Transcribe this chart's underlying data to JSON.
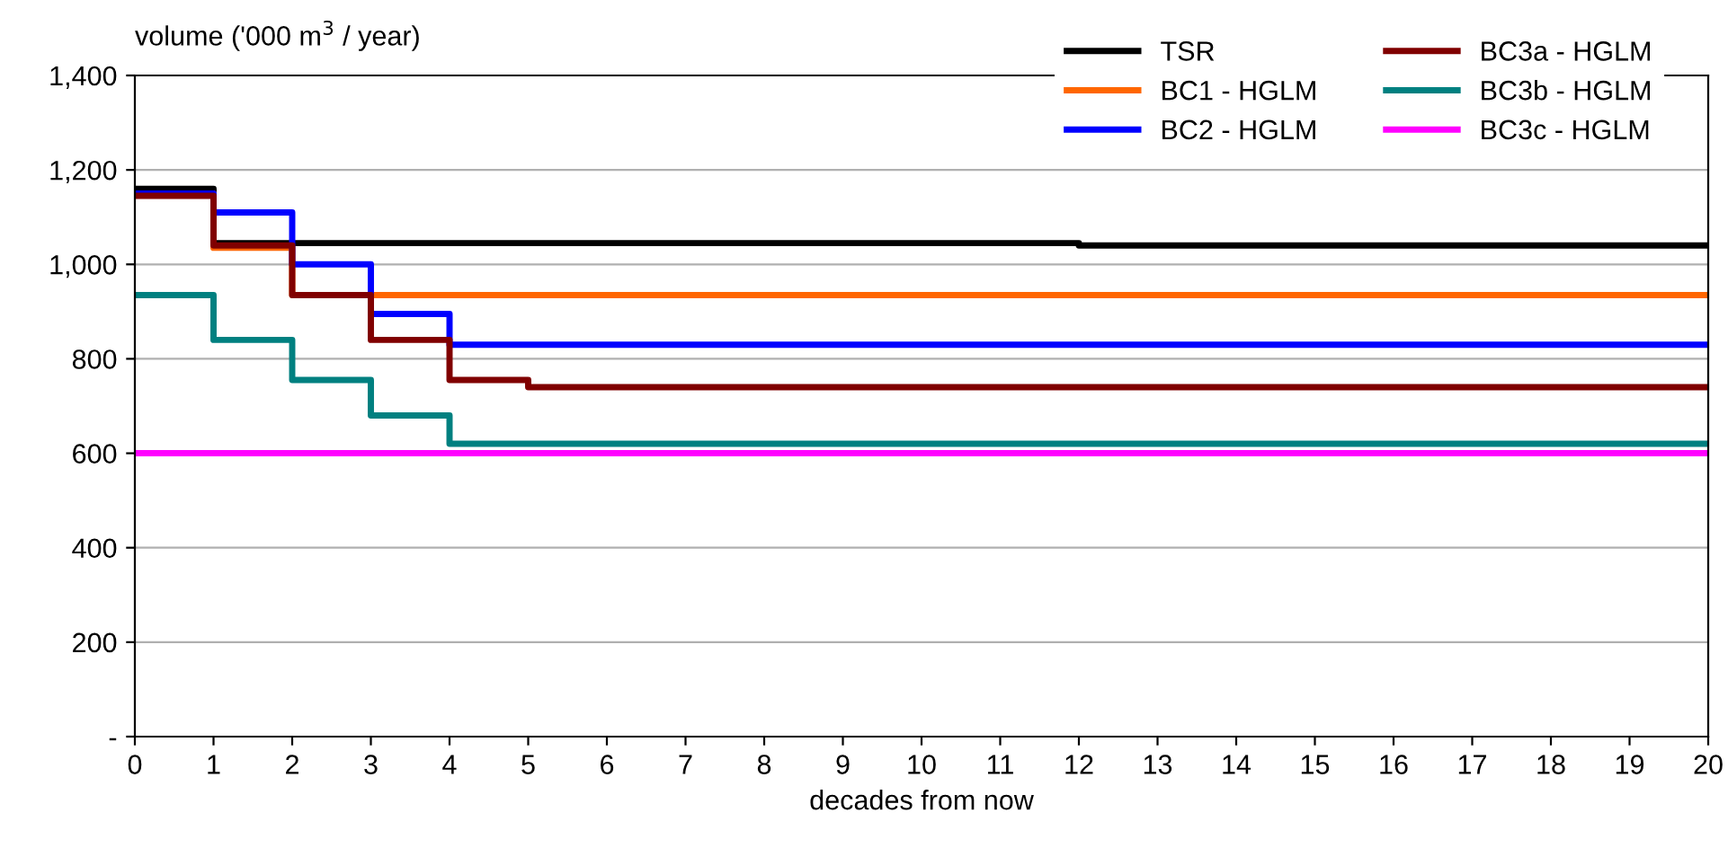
{
  "chart_data": {
    "type": "step",
    "ylabel": "volume ('000 m$^{3}$ / year)",
    "xlabel": "decades from now",
    "x": [
      0,
      1,
      2,
      3,
      4,
      5,
      6,
      7,
      8,
      9,
      10,
      11,
      12,
      13,
      14,
      15,
      16,
      17,
      18,
      19,
      20
    ],
    "series": [
      {
        "name": "TSR",
        "color": "#000000",
        "values": [
          1160,
          1045,
          1045,
          1045,
          1045,
          1045,
          1045,
          1045,
          1045,
          1045,
          1045,
          1045,
          1040,
          1040,
          1040,
          1040,
          1040,
          1040,
          1040,
          1040,
          1040
        ]
      },
      {
        "name": "BC1 - HGLM",
        "color": "#ff6600",
        "values": [
          1150,
          1035,
          935,
          935,
          935,
          935,
          935,
          935,
          935,
          935,
          935,
          935,
          935,
          935,
          935,
          935,
          935,
          935,
          935,
          935,
          935
        ]
      },
      {
        "name": "BC2 - HGLM",
        "color": "#0000ff",
        "values": [
          1150,
          1110,
          1000,
          895,
          830,
          830,
          830,
          830,
          830,
          830,
          830,
          830,
          830,
          830,
          830,
          830,
          830,
          830,
          830,
          830,
          830
        ]
      },
      {
        "name": "BC3a - HGLM",
        "color": "#800000",
        "values": [
          1145,
          1040,
          935,
          840,
          755,
          740,
          740,
          740,
          740,
          740,
          740,
          740,
          740,
          740,
          740,
          740,
          740,
          740,
          740,
          740,
          740
        ]
      },
      {
        "name": "BC3b - HGLM",
        "color": "#008080",
        "values": [
          935,
          840,
          755,
          680,
          620,
          620,
          620,
          620,
          620,
          620,
          620,
          620,
          620,
          620,
          620,
          620,
          620,
          620,
          620,
          620,
          620
        ]
      },
      {
        "name": "BC3c - HGLM",
        "color": "#ff00ff",
        "values": [
          600,
          600,
          600,
          600,
          600,
          600,
          600,
          600,
          600,
          600,
          600,
          600,
          600,
          600,
          600,
          600,
          600,
          600,
          600,
          600,
          600
        ]
      }
    ],
    "xlim": [
      0,
      20
    ],
    "xticks": [
      0,
      1,
      2,
      3,
      4,
      5,
      6,
      7,
      8,
      9,
      10,
      11,
      12,
      13,
      14,
      15,
      16,
      17,
      18,
      19,
      20
    ],
    "ylim": [
      0,
      1400
    ],
    "yticks": [
      {
        "value": 0,
        "label": "-"
      },
      {
        "value": 200,
        "label": "200"
      },
      {
        "value": 400,
        "label": "400"
      },
      {
        "value": 600,
        "label": "600"
      },
      {
        "value": 800,
        "label": "800"
      },
      {
        "value": 1000,
        "label": "1,000"
      },
      {
        "value": 1200,
        "label": "1,200"
      },
      {
        "value": 1400,
        "label": "1,400"
      }
    ],
    "grid": "y",
    "legend": "top right"
  }
}
